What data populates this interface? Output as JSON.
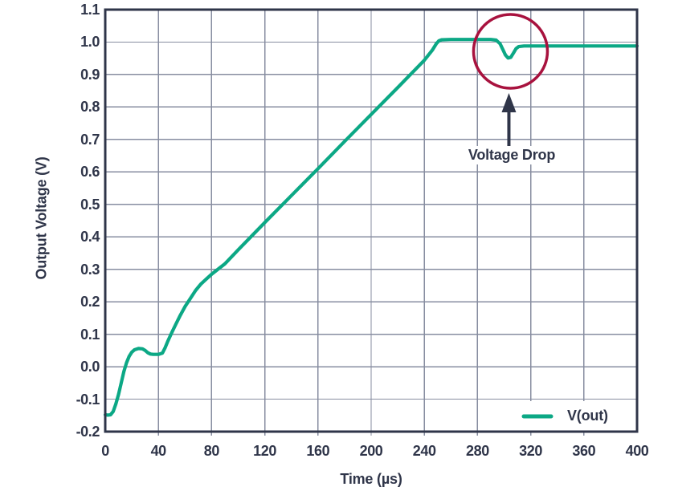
{
  "chart_data": {
    "type": "line",
    "title": "",
    "xlabel": "Time (µs)",
    "ylabel": "Output Voltage (V)",
    "xlim": [
      0,
      400
    ],
    "ylim": [
      -0.2,
      1.1
    ],
    "grid": true,
    "x_ticks": [
      "0",
      "40",
      "80",
      "120",
      "160",
      "200",
      "240",
      "280",
      "320",
      "360",
      "400"
    ],
    "y_ticks": [
      "1.1",
      "1.0",
      "0.9",
      "0.8",
      "0.7",
      "0.6",
      "0.5",
      "0.4",
      "0.3",
      "0.2",
      "0.1",
      "0.0",
      "-0.1",
      "-0.2"
    ],
    "legend": {
      "position": "lower-right",
      "entries": [
        "V(out)"
      ]
    },
    "annotation": {
      "text": "Voltage Drop",
      "target_t": 303,
      "target_v": 0.95
    },
    "colors": {
      "series": "#0CA885",
      "axis_text": "#2F3549",
      "axis_border": "#2F3549",
      "grid": "#878DA0",
      "annotation_circle": "#A8123E",
      "background": "#FFFFFF"
    },
    "series": [
      {
        "name": "V(out)",
        "points": [
          [
            0,
            -0.148
          ],
          [
            2,
            -0.149
          ],
          [
            4,
            -0.148
          ],
          [
            6,
            -0.138
          ],
          [
            8,
            -0.115
          ],
          [
            10,
            -0.085
          ],
          [
            12,
            -0.05
          ],
          [
            14,
            -0.015
          ],
          [
            16,
            0.012
          ],
          [
            18,
            0.032
          ],
          [
            20,
            0.045
          ],
          [
            22,
            0.052
          ],
          [
            25,
            0.056
          ],
          [
            28,
            0.055
          ],
          [
            30,
            0.05
          ],
          [
            32,
            0.043
          ],
          [
            34,
            0.039
          ],
          [
            36,
            0.038
          ],
          [
            40,
            0.038
          ],
          [
            43,
            0.042
          ],
          [
            45,
            0.058
          ],
          [
            47,
            0.078
          ],
          [
            50,
            0.105
          ],
          [
            53,
            0.13
          ],
          [
            56,
            0.155
          ],
          [
            60,
            0.185
          ],
          [
            64,
            0.21
          ],
          [
            68,
            0.235
          ],
          [
            72,
            0.255
          ],
          [
            76,
            0.27
          ],
          [
            80,
            0.285
          ],
          [
            90,
            0.317
          ],
          [
            100,
            0.36
          ],
          [
            110,
            0.402
          ],
          [
            120,
            0.444
          ],
          [
            140,
            0.527
          ],
          [
            160,
            0.61
          ],
          [
            180,
            0.694
          ],
          [
            200,
            0.777
          ],
          [
            220,
            0.86
          ],
          [
            240,
            0.944
          ],
          [
            246,
            0.975
          ],
          [
            249,
            0.995
          ],
          [
            251,
            1.004
          ],
          [
            253,
            1.007
          ],
          [
            260,
            1.008
          ],
          [
            270,
            1.008
          ],
          [
            280,
            1.008
          ],
          [
            290,
            1.008
          ],
          [
            294,
            1.006
          ],
          [
            297,
            0.995
          ],
          [
            299,
            0.978
          ],
          [
            301,
            0.96
          ],
          [
            303,
            0.951
          ],
          [
            305,
            0.953
          ],
          [
            307,
            0.966
          ],
          [
            309,
            0.98
          ],
          [
            311,
            0.986
          ],
          [
            315,
            0.988
          ],
          [
            340,
            0.988
          ],
          [
            370,
            0.988
          ],
          [
            400,
            0.988
          ]
        ]
      }
    ]
  }
}
